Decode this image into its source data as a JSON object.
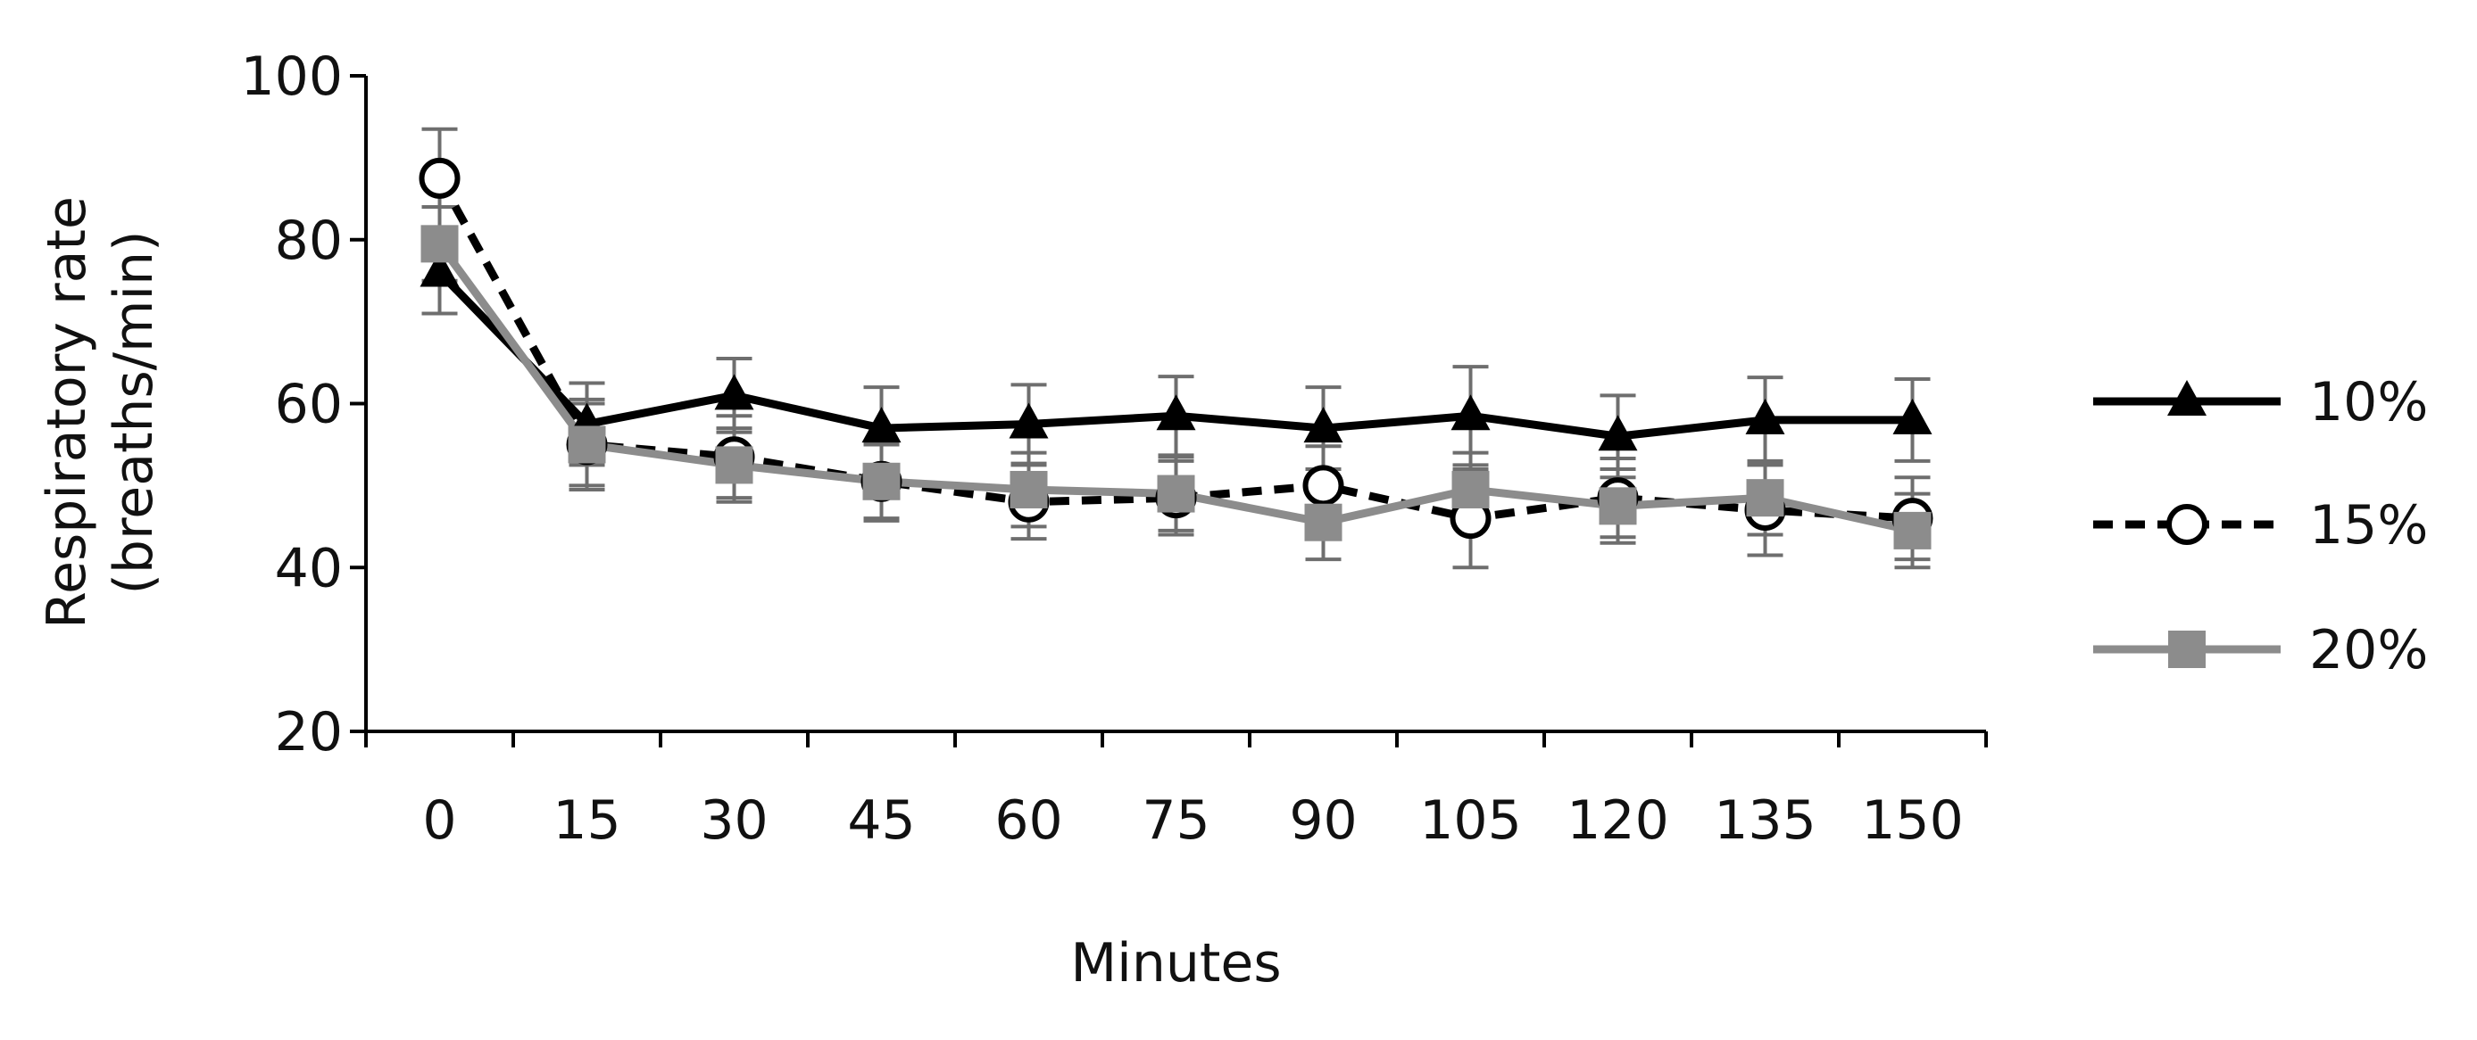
{
  "chart_data": {
    "type": "line",
    "title": "",
    "xlabel": "Minutes",
    "ylabel_lines": [
      "Respiratory rate",
      "(breaths/min)"
    ],
    "ylim": [
      20,
      100
    ],
    "yticks": [
      20,
      40,
      60,
      80,
      100
    ],
    "yticks_text": [
      "20",
      "40",
      "60",
      "80",
      "100"
    ],
    "categories": [
      "0",
      "15",
      "30",
      "45",
      "60",
      "75",
      "90",
      "105",
      "120",
      "135",
      "150"
    ],
    "x": [
      0,
      15,
      30,
      45,
      60,
      75,
      90,
      105,
      120,
      135,
      150
    ],
    "grid": false,
    "legend_placement": "right",
    "series": [
      {
        "name": "10%",
        "values": [
          76,
          57.5,
          61,
          57,
          57.5,
          58.5,
          57,
          58.5,
          56,
          58,
          58
        ],
        "error": [
          5,
          5,
          4.5,
          5,
          4.8,
          4.8,
          5,
          6,
          5,
          5.2,
          5
        ],
        "color": "#000000",
        "marker": "triangle",
        "dash": "solid"
      },
      {
        "name": "15%",
        "values": [
          87.5,
          55,
          53.5,
          50.5,
          48,
          48.5,
          50,
          46,
          48.5,
          47,
          46
        ],
        "error": [
          6,
          5.5,
          5,
          4.8,
          4.5,
          4.5,
          4.8,
          6,
          4.8,
          5.5,
          5
        ],
        "color": "#000000",
        "marker": "circle-open",
        "dash": "dashed"
      },
      {
        "name": "20%",
        "values": [
          79.5,
          55,
          52.5,
          50.5,
          49.5,
          49,
          45.5,
          49.5,
          47.5,
          48.5,
          44.5
        ],
        "error": [
          4.5,
          5,
          4.5,
          4.5,
          4.5,
          4.5,
          4.5,
          4.5,
          4.5,
          4.5,
          4.5
        ],
        "color": "#8c8c8c",
        "marker": "square",
        "dash": "solid"
      }
    ]
  }
}
